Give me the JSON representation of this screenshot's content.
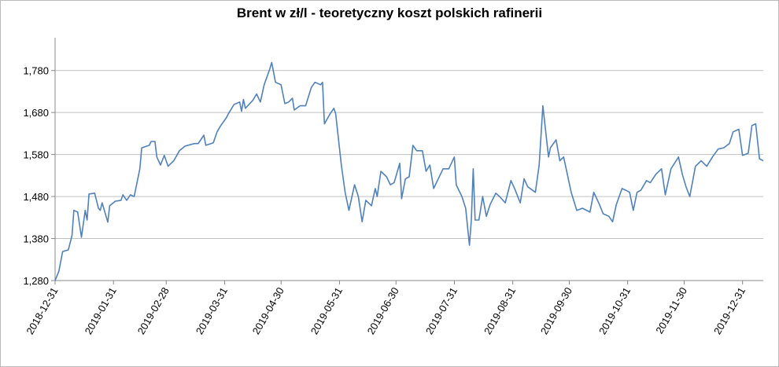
{
  "chart_data": {
    "type": "line",
    "title": "Brent w zł/l - teoretyczny koszt polskich rafinerii",
    "x": [
      "2018-12-31",
      "2019-01-02",
      "2019-01-04",
      "2019-01-07",
      "2019-01-09",
      "2019-01-10",
      "2019-01-12",
      "2019-01-14",
      "2019-01-16",
      "2019-01-17",
      "2019-01-18",
      "2019-01-21",
      "2019-01-23",
      "2019-01-24",
      "2019-01-25",
      "2019-01-28",
      "2019-01-29",
      "2019-02-01",
      "2019-02-04",
      "2019-02-05",
      "2019-02-07",
      "2019-02-09",
      "2019-02-11",
      "2019-02-14",
      "2019-02-15",
      "2019-02-19",
      "2019-02-20",
      "2019-02-22",
      "2019-02-23",
      "2019-02-25",
      "2019-02-27",
      "2019-03-01",
      "2019-03-04",
      "2019-03-07",
      "2019-03-10",
      "2019-03-15",
      "2019-03-17",
      "2019-03-20",
      "2019-03-21",
      "2019-03-25",
      "2019-03-27",
      "2019-03-29",
      "2019-04-01",
      "2019-04-02",
      "2019-04-05",
      "2019-04-08",
      "2019-04-09",
      "2019-04-10",
      "2019-04-11",
      "2019-04-15",
      "2019-04-17",
      "2019-04-19",
      "2019-04-21",
      "2019-04-24",
      "2019-04-25",
      "2019-04-27",
      "2019-04-30",
      "2019-05-02",
      "2019-05-04",
      "2019-05-06",
      "2019-05-07",
      "2019-05-10",
      "2019-05-13",
      "2019-05-16",
      "2019-05-18",
      "2019-05-21",
      "2019-05-22",
      "2019-05-23",
      "2019-05-26",
      "2019-05-28",
      "2019-05-29",
      "2019-06-01",
      "2019-06-03",
      "2019-06-05",
      "2019-06-08",
      "2019-06-10",
      "2019-06-12",
      "2019-06-14",
      "2019-06-17",
      "2019-06-19",
      "2019-06-20",
      "2019-06-22",
      "2019-06-25",
      "2019-06-27",
      "2019-06-29",
      "2019-07-02",
      "2019-07-03",
      "2019-07-05",
      "2019-07-07",
      "2019-07-09",
      "2019-07-11",
      "2019-07-14",
      "2019-07-16",
      "2019-07-18",
      "2019-07-20",
      "2019-07-22",
      "2019-07-25",
      "2019-07-28",
      "2019-07-31",
      "2019-08-01",
      "2019-08-04",
      "2019-08-06",
      "2019-08-08",
      "2019-08-09",
      "2019-08-10",
      "2019-08-11",
      "2019-08-13",
      "2019-08-15",
      "2019-08-17",
      "2019-08-19",
      "2019-08-22",
      "2019-08-24",
      "2019-08-27",
      "2019-08-30",
      "2019-09-01",
      "2019-09-04",
      "2019-09-06",
      "2019-09-08",
      "2019-09-12",
      "2019-09-14",
      "2019-09-16",
      "2019-09-19",
      "2019-09-20",
      "2019-09-23",
      "2019-09-25",
      "2019-09-27",
      "2019-10-01",
      "2019-10-04",
      "2019-10-07",
      "2019-10-11",
      "2019-10-13",
      "2019-10-16",
      "2019-10-18",
      "2019-10-21",
      "2019-10-23",
      "2019-10-25",
      "2019-10-28",
      "2019-10-30",
      "2019-11-01",
      "2019-11-03",
      "2019-11-05",
      "2019-11-07",
      "2019-11-10",
      "2019-11-12",
      "2019-11-15",
      "2019-11-18",
      "2019-11-20",
      "2019-11-23",
      "2019-11-27",
      "2019-11-29",
      "2019-12-01",
      "2019-12-03",
      "2019-12-06",
      "2019-12-09",
      "2019-12-12",
      "2019-12-15",
      "2019-12-18",
      "2019-12-21",
      "2019-12-24",
      "2019-12-26",
      "2019-12-29",
      "2019-12-31",
      "2020-01-03",
      "2020-01-05",
      "2020-01-07",
      "2020-01-09",
      "2020-01-11"
    ],
    "series": [
      {
        "color": "#4f81bd",
        "values": [
          1280,
          1302,
          1349,
          1353,
          1387,
          1447,
          1443,
          1383,
          1447,
          1424,
          1486,
          1488,
          1452,
          1447,
          1465,
          1419,
          1458,
          1469,
          1471,
          1484,
          1471,
          1484,
          1480,
          1546,
          1596,
          1602,
          1611,
          1611,
          1574,
          1555,
          1578,
          1552,
          1565,
          1589,
          1600,
          1606,
          1606,
          1626,
          1602,
          1608,
          1634,
          1649,
          1668,
          1677,
          1699,
          1705,
          1683,
          1711,
          1690,
          1709,
          1724,
          1705,
          1746,
          1784,
          1799,
          1752,
          1746,
          1701,
          1705,
          1714,
          1686,
          1696,
          1696,
          1739,
          1752,
          1746,
          1752,
          1653,
          1677,
          1690,
          1677,
          1555,
          1490,
          1447,
          1508,
          1480,
          1420,
          1471,
          1458,
          1499,
          1480,
          1540,
          1527,
          1508,
          1513,
          1559,
          1475,
          1522,
          1527,
          1602,
          1589,
          1589,
          1540,
          1555,
          1499,
          1518,
          1546,
          1546,
          1574,
          1508,
          1480,
          1452,
          1364,
          1424,
          1546,
          1424,
          1424,
          1480,
          1433,
          1461,
          1488,
          1480,
          1465,
          1518,
          1499,
          1465,
          1522,
          1503,
          1490,
          1555,
          1696,
          1574,
          1596,
          1615,
          1565,
          1574,
          1490,
          1447,
          1452,
          1443,
          1490,
          1461,
          1439,
          1433,
          1420,
          1461,
          1499,
          1495,
          1490,
          1447,
          1490,
          1495,
          1518,
          1513,
          1533,
          1546,
          1484,
          1546,
          1574,
          1533,
          1503,
          1480,
          1552,
          1565,
          1552,
          1574,
          1593,
          1596,
          1606,
          1634,
          1640,
          1578,
          1583,
          1649,
          1653,
          1570,
          1565
        ]
      }
    ],
    "xlim": [
      "2018-12-31",
      "2020-01-11"
    ],
    "xticks": [
      "2018-12-31",
      "2019-01-31",
      "2019-02-28",
      "2019-03-31",
      "2019-04-30",
      "2019-05-31",
      "2019-06-30",
      "2019-07-31",
      "2019-08-31",
      "2019-09-30",
      "2019-10-31",
      "2019-11-30",
      "2019-12-31"
    ],
    "ylim": [
      1280,
      1858
    ],
    "yticks": [
      {
        "value": 1280,
        "label": "1,280"
      },
      {
        "value": 1380,
        "label": "1,380"
      },
      {
        "value": 1480,
        "label": "1,480"
      },
      {
        "value": 1580,
        "label": "1,580"
      },
      {
        "value": 1680,
        "label": "1,680"
      },
      {
        "value": 1780,
        "label": "1,780"
      }
    ],
    "grid": true
  }
}
